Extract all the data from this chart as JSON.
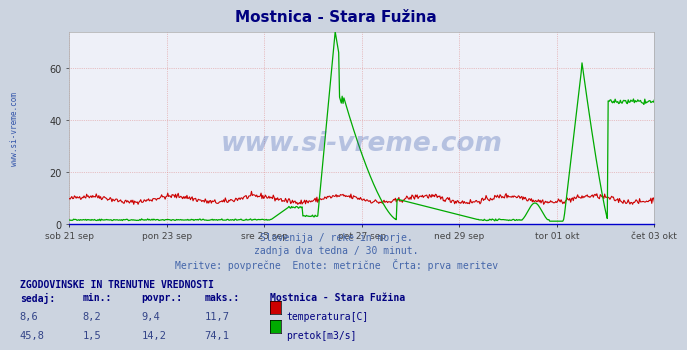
{
  "title": "Mostnica - Stara Fužina",
  "title_color": "#000080",
  "bg_color": "#ccd4e0",
  "plot_bg_color": "#eef0f8",
  "grid_color": "#dd8888",
  "x_labels": [
    "sob 21 sep",
    "pon 23 sep",
    "sre 25 sep",
    "pet 27 sep",
    "ned 29 sep",
    "tor 01 okt",
    "čet 03 okt"
  ],
  "y_ticks": [
    0,
    20,
    40,
    60
  ],
  "ylim_max": 74,
  "subtitle_lines": [
    "Slovenija / reke in morje.",
    "zadnja dva tedna / 30 minut.",
    "Meritve: povprečne  Enote: metrične  Črta: prva meritev"
  ],
  "subtitle_color": "#4466aa",
  "watermark_text": "www.si-vreme.com",
  "watermark_color": "#3355aa",
  "left_label": "www.si-vreme.com",
  "left_label_color": "#3355aa",
  "temp_color": "#cc0000",
  "flow_color": "#00aa00",
  "table_header": "ZGODOVINSKE IN TRENUTNE VREDNOSTI",
  "table_header_color": "#000080",
  "table_cols": [
    "sedaj:",
    "min.:",
    "povpr.:",
    "maks.:",
    "Mostnica - Stara Fužina"
  ],
  "table_col_color": "#000080",
  "table_rows": [
    [
      "8,6",
      "8,2",
      "9,4",
      "11,7",
      "temperatura[C]"
    ],
    [
      "45,8",
      "1,5",
      "14,2",
      "74,1",
      "pretok[m3/s]"
    ]
  ],
  "table_value_color": "#334488",
  "n_points": 672
}
